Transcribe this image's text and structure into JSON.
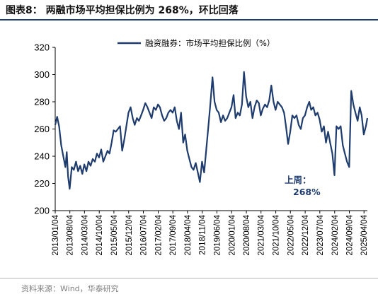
{
  "figure": {
    "title": "图表8：   两融市场平均担保比例为 268%，环比回落",
    "source": "资料来源：Wind，华泰研究"
  },
  "chart_data": {
    "type": "line",
    "title": "",
    "xlabel": "",
    "ylabel": "",
    "ylim": [
      200,
      320
    ],
    "yticks": [
      200,
      220,
      240,
      260,
      280,
      300,
      320
    ],
    "xlim": [
      "2013-01-04",
      "2025-05-23"
    ],
    "xticks": [
      "2013/01/04",
      "2013/08/04",
      "2014/03/04",
      "2014/10/04",
      "2015/05/04",
      "2015/12/04",
      "2016/07/04",
      "2017/02/04",
      "2017/09/04",
      "2018/04/04",
      "2018/11/04",
      "2019/06/04",
      "2020/01/04",
      "2020/08/04",
      "2021/03/04",
      "2021/10/04",
      "2022/05/04",
      "2022/12/04",
      "2023/07/04",
      "2024/02/04",
      "2024/09/04",
      "2025/04/04"
    ],
    "grid": false,
    "legend_position": "top-center",
    "line_color": "#1f3c6e",
    "series": [
      {
        "name": "融资融券：市场平均担保比例（%）",
        "points": [
          [
            "2013-01-04",
            263
          ],
          [
            "2013-02-01",
            269
          ],
          [
            "2013-03-01",
            262
          ],
          [
            "2013-04-01",
            248
          ],
          [
            "2013-05-01",
            240
          ],
          [
            "2013-06-01",
            232
          ],
          [
            "2013-06-20",
            243
          ],
          [
            "2013-07-10",
            225
          ],
          [
            "2013-08-01",
            216
          ],
          [
            "2013-09-01",
            232
          ],
          [
            "2013-10-01",
            230
          ],
          [
            "2013-11-01",
            236
          ],
          [
            "2013-12-01",
            229
          ],
          [
            "2014-01-01",
            233
          ],
          [
            "2014-02-01",
            227
          ],
          [
            "2014-03-01",
            234
          ],
          [
            "2014-04-01",
            229
          ],
          [
            "2014-05-01",
            236
          ],
          [
            "2014-06-01",
            233
          ],
          [
            "2014-07-01",
            238
          ],
          [
            "2014-08-01",
            236
          ],
          [
            "2014-09-01",
            242
          ],
          [
            "2014-10-01",
            239
          ],
          [
            "2014-11-01",
            245
          ],
          [
            "2014-12-01",
            236
          ],
          [
            "2015-01-01",
            240
          ],
          [
            "2015-02-01",
            244
          ],
          [
            "2015-03-01",
            242
          ],
          [
            "2015-04-01",
            250
          ],
          [
            "2015-05-01",
            259
          ],
          [
            "2015-06-01",
            258
          ],
          [
            "2015-07-01",
            260
          ],
          [
            "2015-08-01",
            262
          ],
          [
            "2015-09-01",
            244
          ],
          [
            "2015-10-01",
            252
          ],
          [
            "2015-11-01",
            262
          ],
          [
            "2015-12-01",
            272
          ],
          [
            "2016-01-01",
            276
          ],
          [
            "2016-02-01",
            268
          ],
          [
            "2016-03-01",
            263
          ],
          [
            "2016-04-01",
            268
          ],
          [
            "2016-05-01",
            266
          ],
          [
            "2016-06-01",
            270
          ],
          [
            "2016-07-01",
            274
          ],
          [
            "2016-08-01",
            279
          ],
          [
            "2016-09-01",
            276
          ],
          [
            "2016-10-01",
            272
          ],
          [
            "2016-11-01",
            268
          ],
          [
            "2016-12-01",
            276
          ],
          [
            "2017-01-01",
            274
          ],
          [
            "2017-02-01",
            278
          ],
          [
            "2017-03-01",
            276
          ],
          [
            "2017-04-01",
            270
          ],
          [
            "2017-05-01",
            266
          ],
          [
            "2017-06-01",
            268
          ],
          [
            "2017-07-01",
            272
          ],
          [
            "2017-08-01",
            274
          ],
          [
            "2017-09-01",
            272
          ],
          [
            "2017-10-01",
            276
          ],
          [
            "2017-11-01",
            266
          ],
          [
            "2017-12-01",
            260
          ],
          [
            "2018-01-01",
            272
          ],
          [
            "2018-02-01",
            250
          ],
          [
            "2018-03-01",
            256
          ],
          [
            "2018-04-01",
            244
          ],
          [
            "2018-05-01",
            238
          ],
          [
            "2018-06-01",
            232
          ],
          [
            "2018-07-01",
            230
          ],
          [
            "2018-08-01",
            235
          ],
          [
            "2018-09-01",
            228
          ],
          [
            "2018-10-01",
            221
          ],
          [
            "2018-11-01",
            236
          ],
          [
            "2018-12-01",
            228
          ],
          [
            "2019-01-01",
            245
          ],
          [
            "2019-02-01",
            262
          ],
          [
            "2019-03-01",
            278
          ],
          [
            "2019-04-01",
            298
          ],
          [
            "2019-05-01",
            280
          ],
          [
            "2019-06-01",
            274
          ],
          [
            "2019-07-01",
            272
          ],
          [
            "2019-08-01",
            265
          ],
          [
            "2019-09-01",
            270
          ],
          [
            "2019-10-01",
            266
          ],
          [
            "2019-11-01",
            268
          ],
          [
            "2019-12-01",
            272
          ],
          [
            "2020-01-01",
            276
          ],
          [
            "2020-02-01",
            285
          ],
          [
            "2020-03-01",
            268
          ],
          [
            "2020-04-01",
            272
          ],
          [
            "2020-05-01",
            270
          ],
          [
            "2020-06-01",
            278
          ],
          [
            "2020-07-01",
            302
          ],
          [
            "2020-08-01",
            284
          ],
          [
            "2020-09-01",
            276
          ],
          [
            "2020-10-01",
            280
          ],
          [
            "2020-11-01",
            268
          ],
          [
            "2020-12-01",
            276
          ],
          [
            "2021-01-01",
            281
          ],
          [
            "2021-02-01",
            279
          ],
          [
            "2021-03-01",
            270
          ],
          [
            "2021-04-01",
            275
          ],
          [
            "2021-05-01",
            278
          ],
          [
            "2021-06-01",
            276
          ],
          [
            "2021-07-01",
            281
          ],
          [
            "2021-08-01",
            292
          ],
          [
            "2021-09-01",
            280
          ],
          [
            "2021-10-01",
            274
          ],
          [
            "2021-11-01",
            280
          ],
          [
            "2021-12-01",
            278
          ],
          [
            "2022-01-01",
            276
          ],
          [
            "2022-02-01",
            272
          ],
          [
            "2022-03-01",
            262
          ],
          [
            "2022-04-01",
            249
          ],
          [
            "2022-05-01",
            258
          ],
          [
            "2022-06-01",
            270
          ],
          [
            "2022-07-01",
            268
          ],
          [
            "2022-08-01",
            270
          ],
          [
            "2022-09-01",
            263
          ],
          [
            "2022-10-01",
            260
          ],
          [
            "2022-11-01",
            268
          ],
          [
            "2022-12-01",
            270
          ],
          [
            "2023-01-01",
            276
          ],
          [
            "2023-02-01",
            280
          ],
          [
            "2023-03-01",
            274
          ],
          [
            "2023-04-01",
            276
          ],
          [
            "2023-05-01",
            270
          ],
          [
            "2023-06-01",
            272
          ],
          [
            "2023-07-01",
            267
          ],
          [
            "2023-08-01",
            258
          ],
          [
            "2023-09-01",
            262
          ],
          [
            "2023-10-01",
            250
          ],
          [
            "2023-11-01",
            258
          ],
          [
            "2023-12-01",
            250
          ],
          [
            "2024-01-01",
            242
          ],
          [
            "2024-02-01",
            226
          ],
          [
            "2024-03-01",
            262
          ],
          [
            "2024-04-01",
            260
          ],
          [
            "2024-05-01",
            262
          ],
          [
            "2024-06-01",
            248
          ],
          [
            "2024-07-01",
            242
          ],
          [
            "2024-08-01",
            236
          ],
          [
            "2024-09-01",
            232
          ],
          [
            "2024-10-01",
            288
          ],
          [
            "2024-11-01",
            278
          ],
          [
            "2024-12-01",
            272
          ],
          [
            "2025-01-01",
            266
          ],
          [
            "2025-02-01",
            276
          ],
          [
            "2025-03-01",
            270
          ],
          [
            "2025-04-01",
            256
          ],
          [
            "2025-05-01",
            262
          ],
          [
            "2025-05-23",
            268
          ]
        ]
      }
    ],
    "annotation": {
      "label": "上周：",
      "value": "268%"
    }
  }
}
